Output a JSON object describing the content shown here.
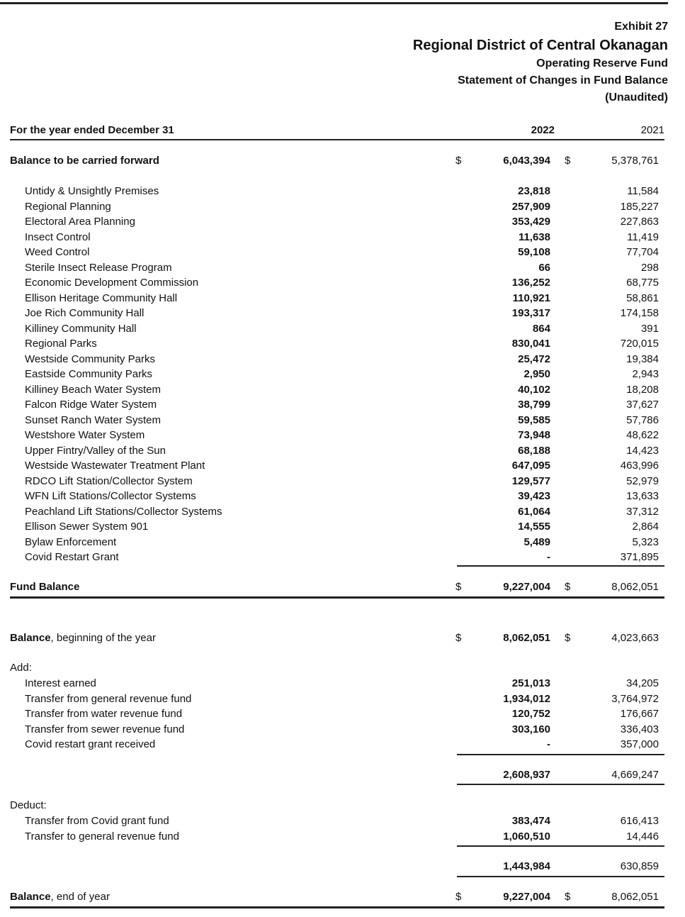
{
  "header": {
    "exhibit": "Exhibit 27",
    "organization": "Regional District of Central Okanagan",
    "fund": "Operating Reserve Fund",
    "statement": "Statement of Changes in Fund Balance",
    "audit_status": "(Unaudited)"
  },
  "columns": {
    "label": "For the year ended December 31",
    "current": "2022",
    "prior": "2021"
  },
  "currency_symbol": "$",
  "carried_forward": {
    "label": "Balance to be carried forward",
    "current": "6,043,394",
    "prior": "5,378,761"
  },
  "items": [
    {
      "label": "Untidy & Unsightly Premises",
      "current": "23,818",
      "prior": "11,584"
    },
    {
      "label": "Regional Planning",
      "current": "257,909",
      "prior": "185,227"
    },
    {
      "label": "Electoral Area Planning",
      "current": "353,429",
      "prior": "227,863"
    },
    {
      "label": "Insect Control",
      "current": "11,638",
      "prior": "11,419"
    },
    {
      "label": "Weed Control",
      "current": "59,108",
      "prior": "77,704"
    },
    {
      "label": "Sterile Insect Release Program",
      "current": "66",
      "prior": "298"
    },
    {
      "label": "Economic Development Commission",
      "current": "136,252",
      "prior": "68,775"
    },
    {
      "label": "Ellison Heritage Community Hall",
      "current": "110,921",
      "prior": "58,861"
    },
    {
      "label": "Joe Rich Community Hall",
      "current": "193,317",
      "prior": "174,158"
    },
    {
      "label": "Killiney Community Hall",
      "current": "864",
      "prior": "391"
    },
    {
      "label": "Regional Parks",
      "current": "830,041",
      "prior": "720,015"
    },
    {
      "label": "Westside Community Parks",
      "current": "25,472",
      "prior": "19,384"
    },
    {
      "label": "Eastside Community Parks",
      "current": "2,950",
      "prior": "2,943"
    },
    {
      "label": "Killiney Beach Water System",
      "current": "40,102",
      "prior": "18,208"
    },
    {
      "label": "Falcon Ridge Water System",
      "current": "38,799",
      "prior": "37,627"
    },
    {
      "label": "Sunset Ranch Water System",
      "current": "59,585",
      "prior": "57,786"
    },
    {
      "label": "Westshore Water System",
      "current": "73,948",
      "prior": "48,622"
    },
    {
      "label": "Upper Fintry/Valley of the Sun",
      "current": "68,188",
      "prior": "14,423"
    },
    {
      "label": "Westside Wastewater Treatment Plant",
      "current": "647,095",
      "prior": "463,996"
    },
    {
      "label": "RDCO Lift Station/Collector System",
      "current": "129,577",
      "prior": "52,979"
    },
    {
      "label": "WFN Lift Stations/Collector Systems",
      "current": "39,423",
      "prior": "13,633"
    },
    {
      "label": "Peachland Lift Stations/Collector Systems",
      "current": "61,064",
      "prior": "37,312"
    },
    {
      "label": "Ellison Sewer System 901",
      "current": "14,555",
      "prior": "2,864"
    },
    {
      "label": "Bylaw Enforcement",
      "current": "5,489",
      "prior": "5,323"
    },
    {
      "label": "Covid Restart Grant",
      "current": "-",
      "prior": "371,895"
    }
  ],
  "fund_balance": {
    "label": "Fund Balance",
    "current": "9,227,004",
    "prior": "8,062,051"
  },
  "beginning": {
    "label_bold": "Balance",
    "label_rest": ", beginning of the year",
    "current": "8,062,051",
    "prior": "4,023,663"
  },
  "add": {
    "label": "Add:",
    "items": [
      {
        "label": "Interest earned",
        "current": "251,013",
        "prior": "34,205"
      },
      {
        "label": "Transfer from general revenue fund",
        "current": "1,934,012",
        "prior": "3,764,972"
      },
      {
        "label": "Transfer from water revenue fund",
        "current": "120,752",
        "prior": "176,667"
      },
      {
        "label": "Transfer from sewer revenue fund",
        "current": "303,160",
        "prior": "336,403"
      },
      {
        "label": "Covid restart grant received",
        "current": "-",
        "prior": "357,000"
      }
    ],
    "subtotal": {
      "current": "2,608,937",
      "prior": "4,669,247"
    }
  },
  "deduct": {
    "label": "Deduct:",
    "items": [
      {
        "label": "Transfer from Covid grant fund",
        "current": "383,474",
        "prior": "616,413"
      },
      {
        "label": "Transfer to general revenue fund",
        "current": "1,060,510",
        "prior": "14,446"
      }
    ],
    "subtotal": {
      "current": "1,443,984",
      "prior": "630,859"
    }
  },
  "ending": {
    "label_bold": "Balance",
    "label_rest": ", end of year",
    "current": "9,227,004",
    "prior": "8,062,051"
  }
}
